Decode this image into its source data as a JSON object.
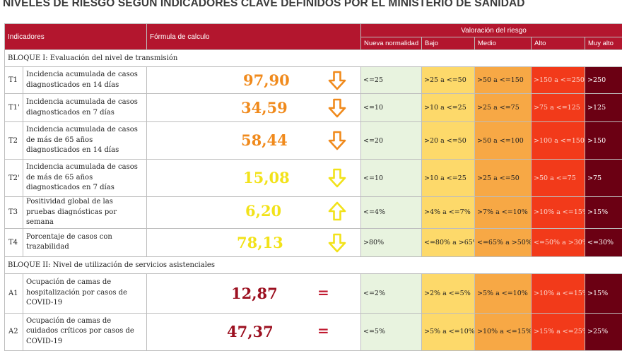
{
  "title": "NIVELES DE RIESGO SEGÚN INDICADORES CLAVE DEFINIDOS POR EL MINISTERIO DE SANIDAD",
  "header": {
    "indicadores": "Indicadores",
    "formula": "Fórmula de calculo",
    "valoracion": "Valoración del riesgo",
    "levels": [
      "Nueva normalidad",
      "Bajo",
      "Medio",
      "Alto",
      "Muy alto"
    ]
  },
  "colors": {
    "header": "#b3162e",
    "nueva_normalidad": "#e8f3df",
    "bajo": "#fdd96a",
    "medio": "#f7a845",
    "alto": "#f23a1a",
    "muy_alto": "#6b0013",
    "value_orange": "#f08a1c",
    "value_yellow": "#f2e21a",
    "value_red": "#9c1020"
  },
  "blocks": [
    {
      "label": "BLOQUE I: Evaluación del nivel de transmisión",
      "rows": [
        {
          "code": "T1",
          "desc": "Incidencia acumulada de casos diagnosticados en 14 días",
          "value": "97,90",
          "trend": "down",
          "ranges": [
            "<=25",
            ">25 a <=50",
            ">50 a <=150",
            ">150 a <=250",
            ">250"
          ]
        },
        {
          "code": "T1'",
          "desc": "Incidencia acumulada de casos diagnosticados en 7 días",
          "value": "34,59",
          "trend": "down",
          "ranges": [
            "<=10",
            ">10 a <=25",
            ">25 a <=75",
            ">75 a <=125",
            ">125"
          ]
        },
        {
          "code": "T2",
          "desc": "Incidencia acumulada de casos de más de 65 años diagnosticados en 14 días",
          "value": "58,44",
          "trend": "down",
          "ranges": [
            "<=20",
            ">20 a <=50",
            ">50 a <=100",
            ">100 a <=150",
            ">150"
          ]
        },
        {
          "code": "T2'",
          "desc": "Incidencia acumulada de casos de más de 65 años diagnosticados en 7 días",
          "value": "15,08",
          "trend": "down",
          "ranges": [
            "<=10",
            ">10 a <=25",
            ">25 a <=50",
            ">50 a <=75",
            ">75"
          ]
        },
        {
          "code": "T3",
          "desc": "Positividad global de las pruebas diagnósticas por semana",
          "value": "6,20",
          "trend": "up",
          "ranges": [
            "<=4%",
            ">4% a <=7%",
            ">7% a <=10%",
            ">10% a <=15%",
            ">15%"
          ]
        },
        {
          "code": "T4",
          "desc": "Porcentaje de casos con trazabilidad",
          "value": "78,13",
          "trend": "down",
          "ranges": [
            ">80%",
            "<=80% a >65%",
            "<=65% a >50%",
            "<=50% a >30%",
            "<=30%"
          ]
        }
      ]
    },
    {
      "label": "BLOQUE II: Nivel de utilización de servicios asistenciales",
      "rows": [
        {
          "code": "A1",
          "desc": "Ocupación de camas de hospitalización por casos de COVID-19",
          "value": "12,87",
          "trend": "equal",
          "ranges": [
            "<=2%",
            ">2% a <=5%",
            ">5% a <=10%",
            ">10% a <=15%",
            ">15%"
          ]
        },
        {
          "code": "A2",
          "desc": "Ocupación de camas de cuidados críticos por casos de COVID-19",
          "value": "47,37",
          "trend": "equal",
          "ranges": [
            "<=5%",
            ">5% a <=10%",
            ">10% a <=15%",
            ">15% a <=25%",
            ">25%"
          ]
        }
      ]
    }
  ]
}
